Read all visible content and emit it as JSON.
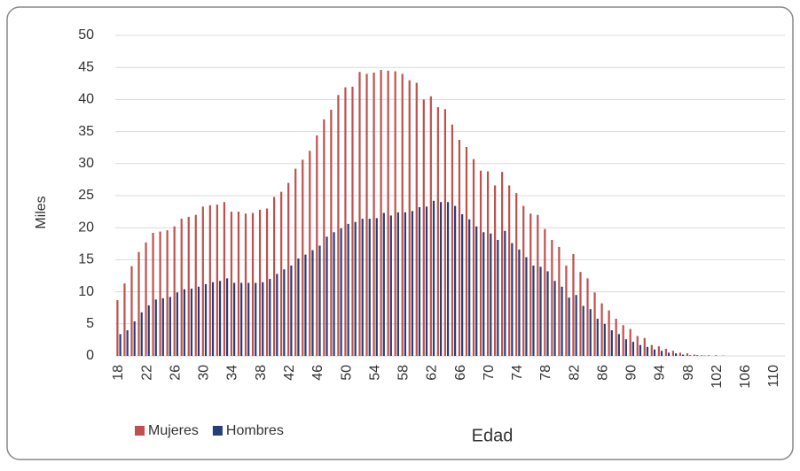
{
  "chart_data": {
    "type": "bar",
    "x_label": "Edad",
    "y_label": "Miles",
    "categories": [
      18,
      null,
      null,
      null,
      22,
      null,
      null,
      null,
      26,
      null,
      null,
      null,
      30,
      null,
      null,
      null,
      34,
      null,
      null,
      null,
      38,
      null,
      null,
      null,
      42,
      null,
      null,
      null,
      46,
      null,
      null,
      null,
      50,
      null,
      null,
      null,
      54,
      null,
      null,
      null,
      58,
      null,
      null,
      null,
      62,
      null,
      null,
      null,
      66,
      null,
      null,
      null,
      70,
      null,
      null,
      null,
      74,
      null,
      null,
      null,
      78,
      null,
      null,
      null,
      82,
      null,
      null,
      null,
      86,
      null,
      null,
      null,
      90,
      null,
      null,
      null,
      94,
      null,
      null,
      null,
      98,
      null,
      null,
      null,
      102,
      null,
      null,
      null,
      106,
      null,
      null,
      null,
      110,
      null
    ],
    "series": [
      {
        "name": "Mujeres",
        "color": "#c0504d",
        "values": [
          8.7,
          11.3,
          14,
          16.2,
          17.7,
          19.2,
          19.4,
          19.6,
          20.2,
          21.4,
          21.7,
          22,
          23.3,
          23.5,
          23.6,
          24,
          22.5,
          22.5,
          22.2,
          22.3,
          22.8,
          23,
          24.8,
          25.6,
          27,
          29.2,
          30.6,
          32,
          34.4,
          36.9,
          38.4,
          40.7,
          41.9,
          42,
          44.3,
          44,
          44.2,
          44.6,
          44.5,
          44.4,
          44,
          43,
          42.6,
          40,
          40.5,
          38.8,
          38.5,
          36.1,
          33.7,
          32.6,
          30.7,
          28.9,
          28.8,
          26.6,
          28.7,
          26.6,
          25.4,
          23.4,
          22.2,
          22,
          19.8,
          18.1,
          17,
          14.1,
          15.9,
          13.1,
          12.1,
          9.9,
          8.2,
          7.1,
          5.8,
          4.8,
          4.2,
          3.1,
          2.8,
          1.7,
          1.5,
          1.1,
          0.8,
          0.5,
          0.4,
          0.2,
          0.1,
          0.1,
          0.1,
          0.05,
          0,
          0,
          0,
          0,
          0,
          0,
          0,
          0
        ]
      },
      {
        "name": "Hombres",
        "color": "#243f7a",
        "values": [
          3.4,
          4,
          5.4,
          6.8,
          7.9,
          8.8,
          9,
          9.2,
          9.9,
          10.4,
          10.5,
          10.8,
          11.2,
          11.5,
          11.7,
          12.1,
          11.4,
          11.4,
          11.4,
          11.4,
          11.5,
          12,
          12.8,
          13.5,
          14.1,
          15.2,
          15.8,
          16.5,
          17.2,
          18.6,
          19.3,
          19.9,
          20.6,
          20.9,
          21.4,
          21.4,
          21.5,
          22.3,
          21.9,
          22.4,
          22.4,
          22.6,
          23.2,
          23.3,
          24.2,
          24,
          24,
          23.4,
          22.1,
          21.3,
          20.2,
          19.3,
          19.1,
          18.1,
          19.5,
          17.6,
          16.6,
          15.4,
          14.1,
          13.9,
          13.2,
          11.7,
          10.8,
          9.1,
          9.5,
          7.8,
          7.3,
          5.8,
          5,
          4,
          3.4,
          2.6,
          2.2,
          1.7,
          1.4,
          1,
          0.8,
          0.5,
          0.4,
          0.2,
          0.1,
          0.1,
          0.05,
          0,
          0,
          0,
          0,
          0,
          0,
          0,
          0,
          0,
          0,
          0
        ]
      }
    ],
    "ylim": [
      0,
      50
    ],
    "yticks": [
      0,
      5,
      10,
      15,
      20,
      25,
      30,
      35,
      40,
      45,
      50
    ],
    "grid": true,
    "legend": "bottom"
  }
}
